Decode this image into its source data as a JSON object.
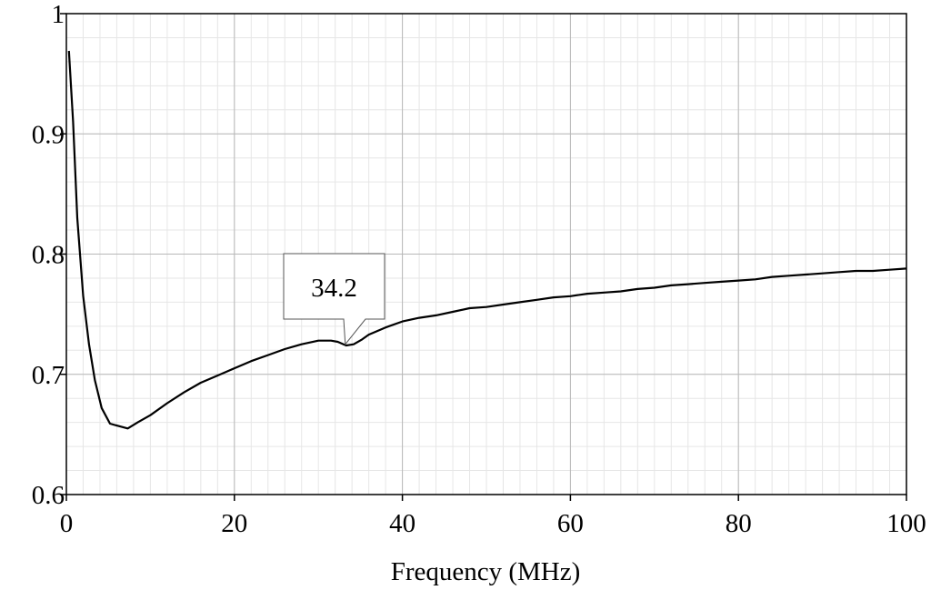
{
  "chart_data": {
    "type": "line",
    "xlabel": "Frequency (MHz)",
    "ylabel": "",
    "xlim": [
      0,
      100
    ],
    "ylim": [
      0.6,
      1.0
    ],
    "x_ticks": [
      {
        "value": 0,
        "label": "0"
      },
      {
        "value": 20,
        "label": "20"
      },
      {
        "value": 40,
        "label": "40"
      },
      {
        "value": 60,
        "label": "60"
      },
      {
        "value": 80,
        "label": "80"
      },
      {
        "value": 100,
        "label": "100"
      }
    ],
    "y_ticks": [
      {
        "value": 0.6,
        "label": "0.6"
      },
      {
        "value": 0.7,
        "label": "0.7"
      },
      {
        "value": 0.8,
        "label": "0.8"
      },
      {
        "value": 0.9,
        "label": "0.9"
      },
      {
        "value": 1.0,
        "label": "1"
      }
    ],
    "grid": true,
    "minor_grid_step_x": 2,
    "minor_grid_step_y": 0.02,
    "series": [
      {
        "color": "#000000",
        "x": [
          0.3,
          0.8,
          1.3,
          2.0,
          2.7,
          3.4,
          4.2,
          5.2,
          6.2,
          7.3,
          8.5,
          10.0,
          12.0,
          14.0,
          16.0,
          18.0,
          20.0,
          22.0,
          24.0,
          26.0,
          28.0,
          30.0,
          31.5,
          32.3,
          33.3,
          34.2,
          35.2,
          36.0,
          38.0,
          40.0,
          42.0,
          44.0,
          46.0,
          48.0,
          50.0,
          52.0,
          54.0,
          56.0,
          58.0,
          60.0,
          62.0,
          64.0,
          66.0,
          68.0,
          70.0,
          72.0,
          74.0,
          76.0,
          78.0,
          80.0,
          82.0,
          84.0,
          86.0,
          88.0,
          90.0,
          92.0,
          94.0,
          96.0,
          98.0,
          100.0
        ],
        "y": [
          0.969,
          0.91,
          0.83,
          0.765,
          0.725,
          0.695,
          0.672,
          0.659,
          0.657,
          0.655,
          0.66,
          0.666,
          0.676,
          0.685,
          0.693,
          0.699,
          0.705,
          0.711,
          0.716,
          0.721,
          0.725,
          0.728,
          0.728,
          0.727,
          0.724,
          0.725,
          0.729,
          0.733,
          0.739,
          0.744,
          0.747,
          0.749,
          0.752,
          0.755,
          0.756,
          0.758,
          0.76,
          0.762,
          0.764,
          0.765,
          0.767,
          0.768,
          0.769,
          0.771,
          0.772,
          0.774,
          0.775,
          0.776,
          0.777,
          0.778,
          0.779,
          0.781,
          0.782,
          0.783,
          0.784,
          0.785,
          0.786,
          0.786,
          0.787,
          0.788
        ]
      }
    ],
    "annotations": [
      {
        "text": "34.2",
        "x": 33.2,
        "y": 0.725
      }
    ]
  }
}
